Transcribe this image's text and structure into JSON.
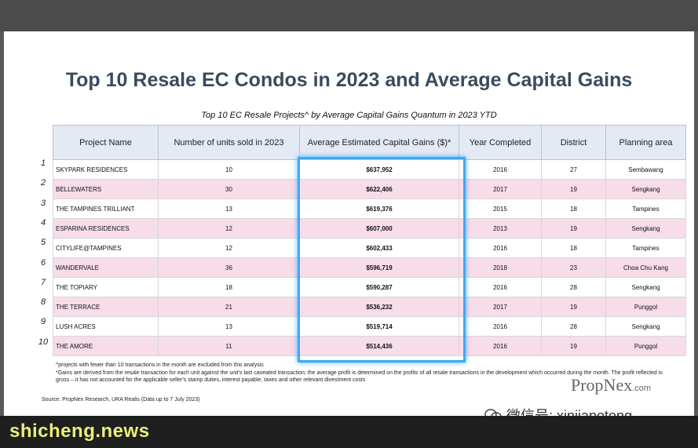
{
  "title": "Top 10 Resale EC Condos in 2023 and Average Capital Gains",
  "subtitle": "Top 10 EC Resale Projects^ by Average Capital Gains Quantum in 2023 YTD",
  "table": {
    "headers": [
      "Project Name",
      "Number of units sold in 2023",
      "Average Estimated Capital Gains ($)*",
      "Year Completed",
      "District",
      "Planning area"
    ],
    "rows": [
      {
        "rank": "1",
        "name": "SKYPARK RESIDENCES",
        "units": "10",
        "gain": "$637,952",
        "year": "2016",
        "district": "27",
        "area": "Sembawang"
      },
      {
        "rank": "2",
        "name": "BELLEWATERS",
        "units": "30",
        "gain": "$622,406",
        "year": "2017",
        "district": "19",
        "area": "Sengkang"
      },
      {
        "rank": "3",
        "name": "THE TAMPINES TRILLIANT",
        "units": "13",
        "gain": "$619,376",
        "year": "2015",
        "district": "18",
        "area": "Tampines"
      },
      {
        "rank": "4",
        "name": "ESPARINA RESIDENCES",
        "units": "12",
        "gain": "$607,000",
        "year": "2013",
        "district": "19",
        "area": "Sengkang"
      },
      {
        "rank": "5",
        "name": "CITYLIFE@TAMPINES",
        "units": "12",
        "gain": "$602,433",
        "year": "2016",
        "district": "18",
        "area": "Tampines"
      },
      {
        "rank": "6",
        "name": "WANDERVALE",
        "units": "36",
        "gain": "$596,719",
        "year": "2018",
        "district": "23",
        "area": "Choa Chu Kang"
      },
      {
        "rank": "7",
        "name": "THE TOPIARY",
        "units": "18",
        "gain": "$590,287",
        "year": "2016",
        "district": "28",
        "area": "Sengkang"
      },
      {
        "rank": "8",
        "name": "THE TERRACE",
        "units": "21",
        "gain": "$536,232",
        "year": "2017",
        "district": "19",
        "area": "Punggol"
      },
      {
        "rank": "9",
        "name": "LUSH ACRES",
        "units": "13",
        "gain": "$519,714",
        "year": "2016",
        "district": "28",
        "area": "Sengkang"
      },
      {
        "rank": "10",
        "name": "THE AMORE",
        "units": "11",
        "gain": "$514,436",
        "year": "2016",
        "district": "19",
        "area": "Punggol"
      }
    ]
  },
  "footnotes": {
    "line1": "^projects with fewer than 10 transactions in the month are excluded from this analysis",
    "line2": "*Gains are derived from the resale transaction for each unit against the unit's last caveated transaction; the average profit is determined on the profits of all resale transactions in the development which occurred during the month. The profit reflected is gross – it has not accounted for the applicable seller's stamp duties, interest payable, taxes and other relevant divestment costs"
  },
  "source": "Source: PropNex Research, URA Realis (Data up to 7 July 2023)",
  "brand": {
    "name": "PropNex",
    "suffix": ".com"
  },
  "wechat": {
    "label": "微信号: xinjiapotong",
    "icon": "wechat-icon"
  },
  "watermark": "shicheng.news",
  "colors": {
    "highlight": "#3fa9f5",
    "row_pink": "#f7dcea",
    "header_bg": "#e3eaf4",
    "title": "#3b4a5e"
  }
}
